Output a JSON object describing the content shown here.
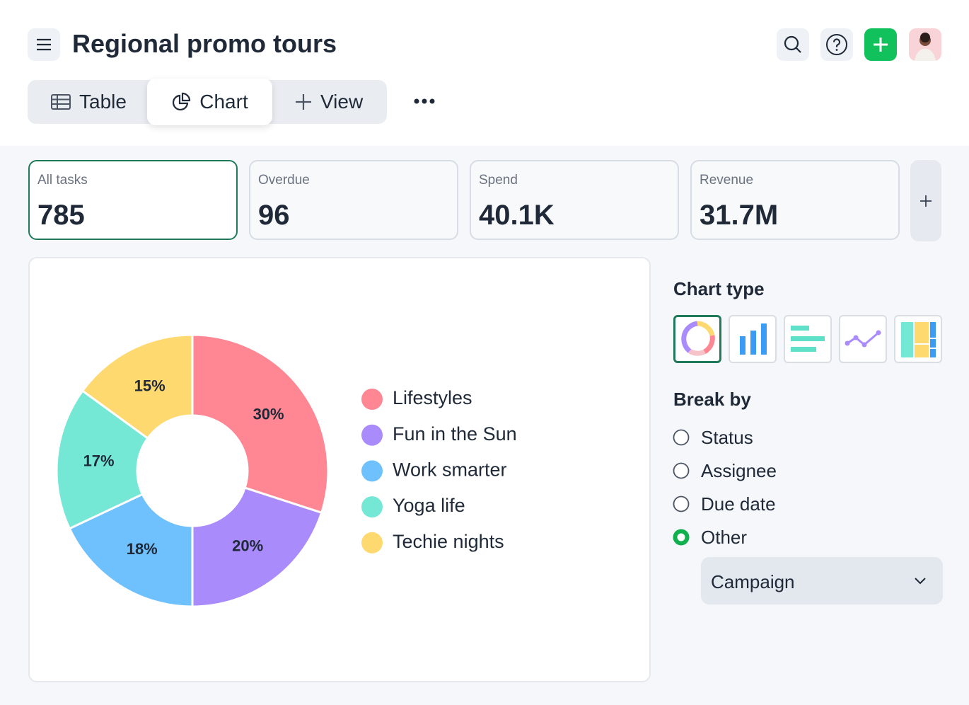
{
  "header": {
    "title": "Regional promo tours"
  },
  "tabs": [
    "Table",
    "Chart",
    "View"
  ],
  "stats": [
    {
      "label": "All tasks",
      "value": 785
    },
    {
      "label": "Overdue",
      "value": 96
    },
    {
      "label": "Spend",
      "value": "40.1K"
    },
    {
      "label": "Revenue",
      "value": "31.7M"
    }
  ],
  "chart_data": {
    "type": "pie",
    "categories": [
      "Lifestyles",
      "Fun in the Sun",
      "Work smarter",
      "Yoga life",
      "Techie nights"
    ],
    "values": [
      30,
      20,
      18,
      17,
      15
    ],
    "value_labels": [
      "30%",
      "20%",
      "18%",
      "17%",
      "15%"
    ],
    "colors": [
      "#ff8793",
      "#a98bfc",
      "#6ec1fd",
      "#74e8d4",
      "#fed970"
    ]
  },
  "panel": {
    "chart_type_title": "Chart type",
    "break_by_title": "Break by",
    "options": [
      "Status",
      "Assignee",
      "Due date",
      "Other"
    ],
    "dropdown": "Campaign"
  }
}
